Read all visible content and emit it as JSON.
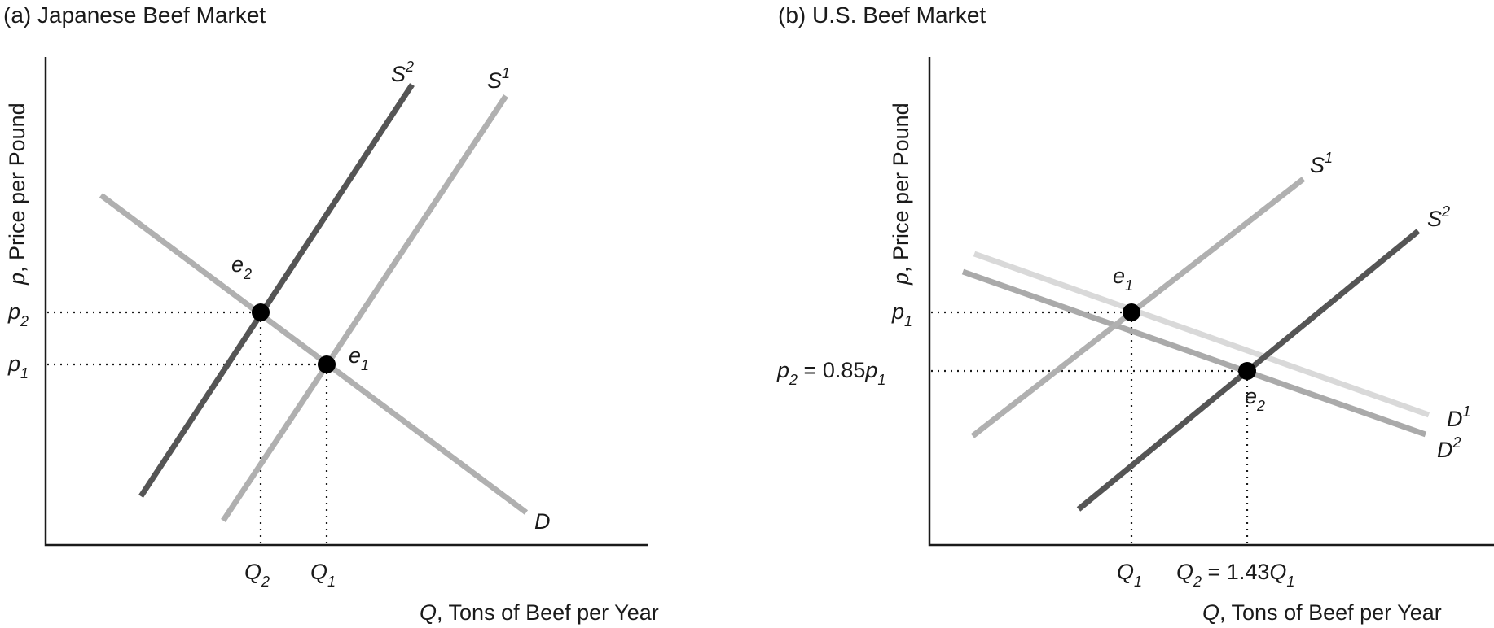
{
  "panel_a": {
    "title": "(a) Japanese Beef Market",
    "y_axis": {
      "var": "p",
      "text": ", Price per Pound"
    },
    "x_axis": {
      "var": "Q",
      "text": ", Tons of Beef per Year"
    },
    "curves": {
      "s2": {
        "name": "S",
        "sup": "2",
        "color": "#555555"
      },
      "s1": {
        "name": "S",
        "sup": "1",
        "color": "#b0b0b0"
      },
      "d": {
        "name": "D",
        "color": "#b0b0b0"
      }
    },
    "equilibria": {
      "e2": {
        "name": "e",
        "sub": "2"
      },
      "e1": {
        "name": "e",
        "sub": "1"
      }
    },
    "price_ticks": {
      "p2": {
        "name": "p",
        "sub": "2"
      },
      "p1": {
        "name": "p",
        "sub": "1"
      }
    },
    "quantity_ticks": {
      "q2": {
        "name": "Q",
        "sub": "2"
      },
      "q1": {
        "name": "Q",
        "sub": "1"
      }
    }
  },
  "panel_b": {
    "title": "(b) U.S. Beef Market",
    "y_axis": {
      "var": "p",
      "text": ", Price per Pound"
    },
    "x_axis": {
      "var": "Q",
      "text": ", Tons of Beef per Year"
    },
    "curves": {
      "s1": {
        "name": "S",
        "sup": "1",
        "color": "#b0b0b0"
      },
      "s2": {
        "name": "S",
        "sup": "2",
        "color": "#555555"
      },
      "d1": {
        "name": "D",
        "sup": "1",
        "color": "#d9d9d9"
      },
      "d2": {
        "name": "D",
        "sup": "2",
        "color": "#aaaaaa"
      }
    },
    "equilibria": {
      "e1": {
        "name": "e",
        "sub": "1"
      },
      "e2": {
        "name": "e",
        "sub": "2"
      }
    },
    "price_ticks": {
      "p1": {
        "name": "p",
        "sub": "1"
      },
      "p2": {
        "name": "p",
        "sub": "2",
        "rest": " = 0.85",
        "rest_var": "p",
        "rest_sub": "1"
      }
    },
    "quantity_ticks": {
      "q1": {
        "name": "Q",
        "sub": "1"
      },
      "q2": {
        "name": "Q",
        "sub": "2",
        "rest": " = 1.43",
        "rest_var": "Q",
        "rest_sub": "1"
      }
    }
  }
}
